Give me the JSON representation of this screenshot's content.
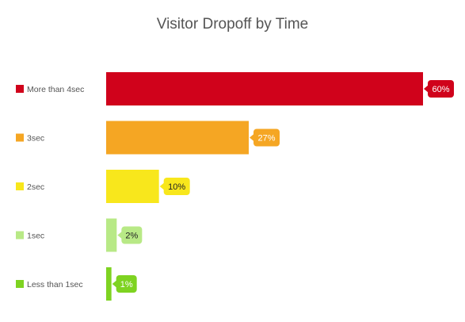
{
  "chart_data": {
    "type": "bar",
    "orientation": "horizontal",
    "title": "Visitor Dropoff by Time",
    "categories": [
      "More than 4sec",
      "3sec",
      "2sec",
      "1sec",
      "Less than 1sec"
    ],
    "values": [
      60,
      27,
      10,
      2,
      1
    ],
    "value_labels": [
      "60%",
      "27%",
      "10%",
      "2%",
      "1%"
    ],
    "colors": [
      "#d0021b",
      "#f5a623",
      "#f8e71c",
      "#b8e986",
      "#7ed321"
    ],
    "label_text_colors": [
      "#ffffff",
      "#ffffff",
      "#222222",
      "#222222",
      "#ffffff"
    ],
    "xlim": [
      0,
      60
    ],
    "grid": false,
    "xlabel": "",
    "ylabel": ""
  }
}
